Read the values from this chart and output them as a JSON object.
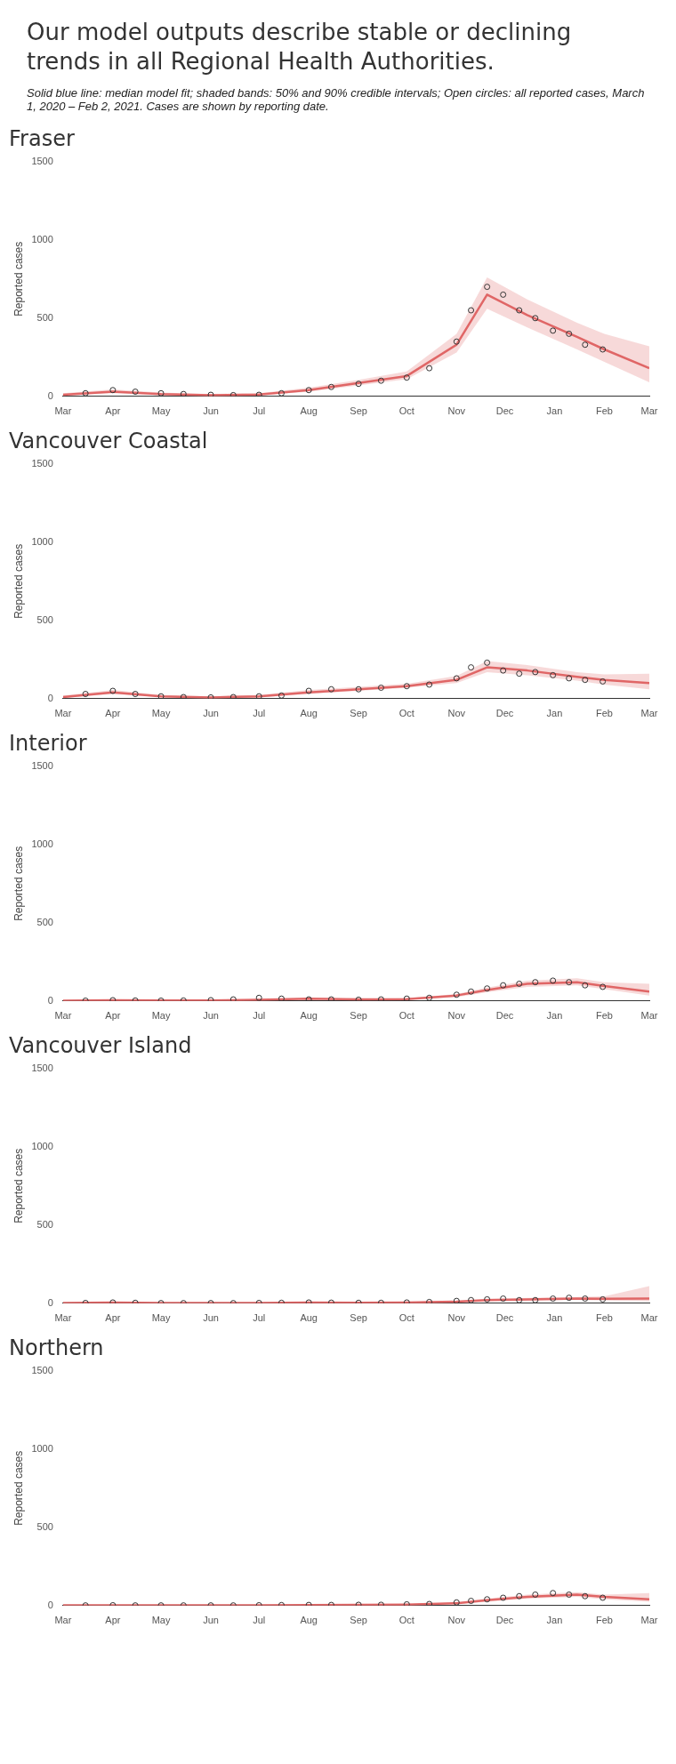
{
  "chart_data": [
    {
      "type": "other",
      "title": "Our model outputs describe stable or declining trends in all Regional Health Authorities.",
      "annotations": [
        "Solid blue line: median model fit; shaded bands: 50% and 90% credible intervals; Open circles: all reported cases, March 1, 2020 – Feb 2, 2021. Cases are shown by reporting date."
      ]
    },
    {
      "type": "scatter",
      "title": "Fraser",
      "ylabel": "Reported cases",
      "ylim": [
        0,
        1500
      ],
      "yticks": [
        0,
        500,
        1000,
        1500
      ],
      "xlim": [
        "2020-03-01",
        "2021-03-01"
      ],
      "xticks": [
        {
          "value": "2020-03-01",
          "label": "Mar"
        },
        {
          "value": "2020-04-01",
          "label": "Apr"
        },
        {
          "value": "2020-05-01",
          "label": "May"
        },
        {
          "value": "2020-06-01",
          "label": "Jun"
        },
        {
          "value": "2020-07-01",
          "label": "Jul"
        },
        {
          "value": "2020-08-01",
          "label": "Aug"
        },
        {
          "value": "2020-09-01",
          "label": "Sep"
        },
        {
          "value": "2020-10-01",
          "label": "Oct"
        },
        {
          "value": "2020-11-01",
          "label": "Nov"
        },
        {
          "value": "2020-12-01",
          "label": "Dec"
        },
        {
          "value": "2021-01-01",
          "label": "Jan"
        },
        {
          "value": "2021-02-01",
          "label": "Feb"
        },
        {
          "value": "2021-03-01",
          "label": "Mar"
        }
      ],
      "marker": "circle",
      "grid": false,
      "legend": false,
      "series": [
        {
          "type": "scatter",
          "color": "#333333",
          "x": [
            "2020-03-15",
            "2020-04-01",
            "2020-04-15",
            "2020-05-01",
            "2020-05-15",
            "2020-06-01",
            "2020-06-15",
            "2020-07-01",
            "2020-07-15",
            "2020-08-01",
            "2020-08-15",
            "2020-09-01",
            "2020-09-15",
            "2020-10-01",
            "2020-10-15",
            "2020-11-01",
            "2020-11-10",
            "2020-11-20",
            "2020-11-30",
            "2020-12-10",
            "2020-12-20",
            "2020-12-31",
            "2021-01-10",
            "2021-01-20",
            "2021-01-31"
          ],
          "values": [
            20,
            40,
            30,
            20,
            15,
            10,
            8,
            10,
            20,
            40,
            60,
            80,
            100,
            120,
            180,
            350,
            550,
            700,
            650,
            550,
            500,
            420,
            400,
            330,
            300
          ]
        },
        {
          "type": "line",
          "color": "#e06666",
          "x": [
            "2020-03-01",
            "2020-04-01",
            "2020-05-01",
            "2020-06-01",
            "2020-07-01",
            "2020-08-01",
            "2020-09-01",
            "2020-10-01",
            "2020-11-01",
            "2020-11-20",
            "2020-12-15",
            "2021-01-15",
            "2021-02-01",
            "2021-03-01"
          ],
          "marker": "none",
          "values": [
            10,
            30,
            15,
            8,
            12,
            40,
            85,
            130,
            330,
            650,
            520,
            380,
            300,
            180
          ],
          "lower": [
            5,
            20,
            8,
            3,
            6,
            30,
            70,
            110,
            280,
            560,
            440,
            300,
            220,
            90
          ],
          "upper": [
            20,
            45,
            25,
            15,
            20,
            55,
            105,
            160,
            400,
            760,
            620,
            470,
            400,
            320
          ]
        }
      ]
    },
    {
      "type": "scatter",
      "title": "Vancouver Coastal",
      "ylabel": "Reported cases",
      "ylim": [
        0,
        1500
      ],
      "yticks": [
        0,
        500,
        1000,
        1500
      ],
      "xlim": [
        "2020-03-01",
        "2021-03-01"
      ],
      "xticks": [
        {
          "value": "2020-03-01",
          "label": "Mar"
        },
        {
          "value": "2020-04-01",
          "label": "Apr"
        },
        {
          "value": "2020-05-01",
          "label": "May"
        },
        {
          "value": "2020-06-01",
          "label": "Jun"
        },
        {
          "value": "2020-07-01",
          "label": "Jul"
        },
        {
          "value": "2020-08-01",
          "label": "Aug"
        },
        {
          "value": "2020-09-01",
          "label": "Sep"
        },
        {
          "value": "2020-10-01",
          "label": "Oct"
        },
        {
          "value": "2020-11-01",
          "label": "Nov"
        },
        {
          "value": "2020-12-01",
          "label": "Dec"
        },
        {
          "value": "2021-01-01",
          "label": "Jan"
        },
        {
          "value": "2021-02-01",
          "label": "Feb"
        },
        {
          "value": "2021-03-01",
          "label": "Mar"
        }
      ],
      "marker": "circle",
      "grid": false,
      "legend": false,
      "series": [
        {
          "type": "scatter",
          "color": "#333333",
          "x": [
            "2020-03-15",
            "2020-04-01",
            "2020-04-15",
            "2020-05-01",
            "2020-05-15",
            "2020-06-01",
            "2020-06-15",
            "2020-07-01",
            "2020-07-15",
            "2020-08-01",
            "2020-08-15",
            "2020-09-01",
            "2020-09-15",
            "2020-10-01",
            "2020-10-15",
            "2020-11-01",
            "2020-11-10",
            "2020-11-20",
            "2020-11-30",
            "2020-12-10",
            "2020-12-20",
            "2020-12-31",
            "2021-01-10",
            "2021-01-20",
            "2021-01-31"
          ],
          "values": [
            30,
            50,
            30,
            15,
            10,
            8,
            10,
            15,
            20,
            50,
            60,
            60,
            70,
            80,
            90,
            130,
            200,
            230,
            180,
            160,
            170,
            150,
            130,
            120,
            110
          ]
        },
        {
          "type": "line",
          "color": "#e06666",
          "x": [
            "2020-03-01",
            "2020-04-01",
            "2020-05-01",
            "2020-06-01",
            "2020-07-01",
            "2020-08-01",
            "2020-09-01",
            "2020-10-01",
            "2020-11-01",
            "2020-11-20",
            "2020-12-15",
            "2021-01-15",
            "2021-02-01",
            "2021-03-01"
          ],
          "marker": "none",
          "values": [
            10,
            40,
            15,
            8,
            15,
            40,
            60,
            80,
            120,
            200,
            180,
            140,
            120,
            100
          ],
          "lower": [
            5,
            30,
            10,
            4,
            8,
            30,
            50,
            70,
            100,
            170,
            150,
            115,
            90,
            60
          ],
          "upper": [
            20,
            55,
            25,
            15,
            25,
            55,
            75,
            95,
            145,
            240,
            215,
            170,
            155,
            160
          ]
        }
      ]
    },
    {
      "type": "scatter",
      "title": "Interior",
      "ylabel": "Reported cases",
      "ylim": [
        0,
        1500
      ],
      "yticks": [
        0,
        500,
        1000,
        1500
      ],
      "xlim": [
        "2020-03-01",
        "2021-03-01"
      ],
      "xticks": [
        {
          "value": "2020-03-01",
          "label": "Mar"
        },
        {
          "value": "2020-04-01",
          "label": "Apr"
        },
        {
          "value": "2020-05-01",
          "label": "May"
        },
        {
          "value": "2020-06-01",
          "label": "Jun"
        },
        {
          "value": "2020-07-01",
          "label": "Jul"
        },
        {
          "value": "2020-08-01",
          "label": "Aug"
        },
        {
          "value": "2020-09-01",
          "label": "Sep"
        },
        {
          "value": "2020-10-01",
          "label": "Oct"
        },
        {
          "value": "2020-11-01",
          "label": "Nov"
        },
        {
          "value": "2020-12-01",
          "label": "Dec"
        },
        {
          "value": "2021-01-01",
          "label": "Jan"
        },
        {
          "value": "2021-02-01",
          "label": "Feb"
        },
        {
          "value": "2021-03-01",
          "label": "Mar"
        }
      ],
      "marker": "circle",
      "grid": false,
      "legend": false,
      "series": [
        {
          "type": "scatter",
          "color": "#333333",
          "x": [
            "2020-03-15",
            "2020-04-01",
            "2020-04-15",
            "2020-05-01",
            "2020-05-15",
            "2020-06-01",
            "2020-06-15",
            "2020-07-01",
            "2020-07-15",
            "2020-08-01",
            "2020-08-15",
            "2020-09-01",
            "2020-09-15",
            "2020-10-01",
            "2020-10-15",
            "2020-11-01",
            "2020-11-10",
            "2020-11-20",
            "2020-11-30",
            "2020-12-10",
            "2020-12-20",
            "2020-12-31",
            "2021-01-10",
            "2021-01-20",
            "2021-01-31"
          ],
          "values": [
            2,
            5,
            3,
            2,
            3,
            5,
            10,
            20,
            15,
            10,
            10,
            8,
            10,
            15,
            20,
            40,
            60,
            80,
            100,
            110,
            120,
            130,
            120,
            100,
            90
          ]
        },
        {
          "type": "line",
          "color": "#e06666",
          "x": [
            "2020-03-01",
            "2020-04-01",
            "2020-05-01",
            "2020-06-01",
            "2020-07-01",
            "2020-08-01",
            "2020-09-01",
            "2020-10-01",
            "2020-11-01",
            "2020-11-20",
            "2020-12-15",
            "2021-01-15",
            "2021-02-01",
            "2021-03-01"
          ],
          "marker": "none",
          "values": [
            2,
            4,
            3,
            3,
            8,
            15,
            10,
            12,
            35,
            70,
            110,
            120,
            95,
            60
          ],
          "lower": [
            1,
            2,
            1,
            1,
            4,
            10,
            6,
            8,
            25,
            55,
            90,
            100,
            75,
            35
          ],
          "upper": [
            4,
            7,
            5,
            5,
            12,
            20,
            15,
            17,
            45,
            85,
            130,
            145,
            120,
            110
          ]
        }
      ]
    },
    {
      "type": "scatter",
      "title": "Vancouver Island",
      "ylabel": "Reported cases",
      "ylim": [
        0,
        1500
      ],
      "yticks": [
        0,
        500,
        1000,
        1500
      ],
      "xlim": [
        "2020-03-01",
        "2021-03-01"
      ],
      "xticks": [
        {
          "value": "2020-03-01",
          "label": "Mar"
        },
        {
          "value": "2020-04-01",
          "label": "Apr"
        },
        {
          "value": "2020-05-01",
          "label": "May"
        },
        {
          "value": "2020-06-01",
          "label": "Jun"
        },
        {
          "value": "2020-07-01",
          "label": "Jul"
        },
        {
          "value": "2020-08-01",
          "label": "Aug"
        },
        {
          "value": "2020-09-01",
          "label": "Sep"
        },
        {
          "value": "2020-10-01",
          "label": "Oct"
        },
        {
          "value": "2020-11-01",
          "label": "Nov"
        },
        {
          "value": "2020-12-01",
          "label": "Dec"
        },
        {
          "value": "2021-01-01",
          "label": "Jan"
        },
        {
          "value": "2021-02-01",
          "label": "Feb"
        },
        {
          "value": "2021-03-01",
          "label": "Mar"
        }
      ],
      "marker": "circle",
      "grid": false,
      "legend": false,
      "series": [
        {
          "type": "scatter",
          "color": "#333333",
          "x": [
            "2020-03-15",
            "2020-04-01",
            "2020-04-15",
            "2020-05-01",
            "2020-05-15",
            "2020-06-01",
            "2020-06-15",
            "2020-07-01",
            "2020-07-15",
            "2020-08-01",
            "2020-08-15",
            "2020-09-01",
            "2020-09-15",
            "2020-10-01",
            "2020-10-15",
            "2020-11-01",
            "2020-11-10",
            "2020-11-20",
            "2020-11-30",
            "2020-12-10",
            "2020-12-20",
            "2020-12-31",
            "2021-01-10",
            "2021-01-20",
            "2021-01-31"
          ],
          "values": [
            2,
            5,
            3,
            1,
            1,
            1,
            1,
            2,
            3,
            5,
            4,
            3,
            3,
            5,
            8,
            15,
            20,
            25,
            30,
            20,
            20,
            30,
            35,
            30,
            25
          ]
        },
        {
          "type": "line",
          "color": "#e06666",
          "x": [
            "2020-03-01",
            "2020-04-01",
            "2020-05-01",
            "2020-06-01",
            "2020-07-01",
            "2020-08-01",
            "2020-09-01",
            "2020-10-01",
            "2020-11-01",
            "2020-11-20",
            "2020-12-15",
            "2021-01-15",
            "2021-02-01",
            "2021-03-01"
          ],
          "marker": "none",
          "values": [
            1,
            4,
            2,
            1,
            2,
            4,
            3,
            4,
            10,
            20,
            25,
            30,
            28,
            30
          ],
          "lower": [
            0,
            2,
            1,
            0,
            1,
            2,
            1,
            2,
            6,
            14,
            18,
            22,
            18,
            12
          ],
          "upper": [
            3,
            7,
            4,
            2,
            4,
            7,
            5,
            7,
            15,
            28,
            35,
            40,
            45,
            110
          ]
        }
      ]
    },
    {
      "type": "scatter",
      "title": "Northern",
      "ylabel": "Reported cases",
      "ylim": [
        0,
        1500
      ],
      "yticks": [
        0,
        500,
        1000,
        1500
      ],
      "xlim": [
        "2020-03-01",
        "2021-03-01"
      ],
      "xticks": [
        {
          "value": "2020-03-01",
          "label": "Mar"
        },
        {
          "value": "2020-04-01",
          "label": "Apr"
        },
        {
          "value": "2020-05-01",
          "label": "May"
        },
        {
          "value": "2020-06-01",
          "label": "Jun"
        },
        {
          "value": "2020-07-01",
          "label": "Jul"
        },
        {
          "value": "2020-08-01",
          "label": "Aug"
        },
        {
          "value": "2020-09-01",
          "label": "Sep"
        },
        {
          "value": "2020-10-01",
          "label": "Oct"
        },
        {
          "value": "2020-11-01",
          "label": "Nov"
        },
        {
          "value": "2020-12-01",
          "label": "Dec"
        },
        {
          "value": "2021-01-01",
          "label": "Jan"
        },
        {
          "value": "2021-02-01",
          "label": "Feb"
        },
        {
          "value": "2021-03-01",
          "label": "Mar"
        }
      ],
      "marker": "circle",
      "grid": false,
      "legend": false,
      "series": [
        {
          "type": "scatter",
          "color": "#333333",
          "x": [
            "2020-03-15",
            "2020-04-01",
            "2020-04-15",
            "2020-05-01",
            "2020-05-15",
            "2020-06-01",
            "2020-06-15",
            "2020-07-01",
            "2020-07-15",
            "2020-08-01",
            "2020-08-15",
            "2020-09-01",
            "2020-09-15",
            "2020-10-01",
            "2020-10-15",
            "2020-11-01",
            "2020-11-10",
            "2020-11-20",
            "2020-11-30",
            "2020-12-10",
            "2020-12-20",
            "2020-12-31",
            "2021-01-10",
            "2021-01-20",
            "2021-01-31"
          ],
          "values": [
            1,
            2,
            1,
            1,
            1,
            1,
            1,
            2,
            3,
            4,
            4,
            5,
            5,
            8,
            10,
            20,
            30,
            40,
            50,
            60,
            70,
            80,
            70,
            60,
            50
          ]
        },
        {
          "type": "line",
          "color": "#e06666",
          "x": [
            "2020-03-01",
            "2020-04-01",
            "2020-05-01",
            "2020-06-01",
            "2020-07-01",
            "2020-08-01",
            "2020-09-01",
            "2020-10-01",
            "2020-11-01",
            "2020-11-20",
            "2020-12-15",
            "2021-01-15",
            "2021-02-01",
            "2021-03-01"
          ],
          "marker": "none",
          "values": [
            1,
            2,
            1,
            1,
            1,
            3,
            4,
            6,
            15,
            35,
            55,
            70,
            55,
            40
          ],
          "lower": [
            0,
            1,
            0,
            0,
            0,
            2,
            2,
            4,
            10,
            25,
            45,
            55,
            40,
            25
          ],
          "upper": [
            2,
            4,
            2,
            2,
            2,
            5,
            6,
            9,
            20,
            45,
            70,
            85,
            70,
            80
          ]
        }
      ]
    }
  ]
}
